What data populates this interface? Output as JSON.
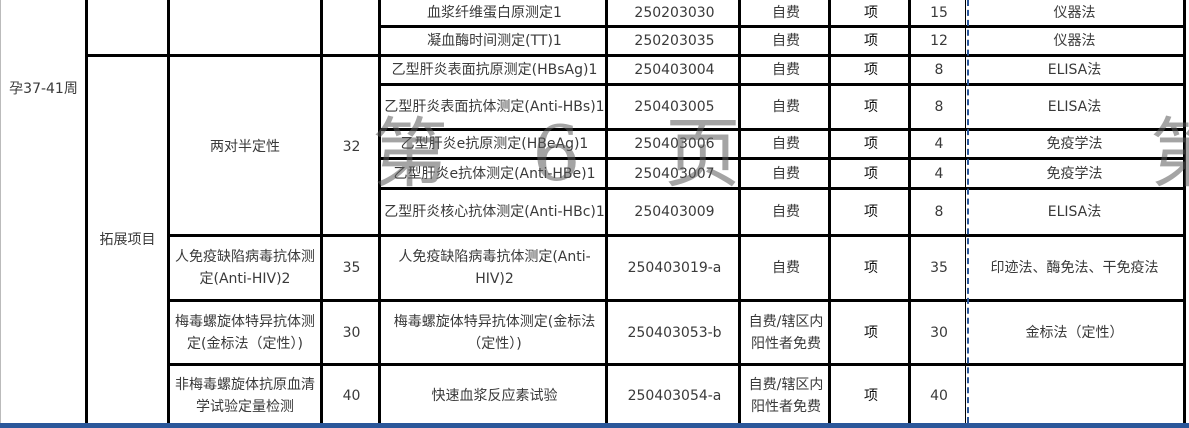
{
  "period": "孕37-41周",
  "category": "拓展项目",
  "group": {
    "name": "两对半定性",
    "price": "32"
  },
  "rows": [
    {
      "item": "血浆纤维蛋白原测定1",
      "code": "250203030",
      "pay": "自费",
      "unit": "项",
      "price": "15",
      "method": "仪器法"
    },
    {
      "item": "凝血酶时间测定(TT)1",
      "code": "250203035",
      "pay": "自费",
      "unit": "项",
      "price": "12",
      "method": "仪器法"
    },
    {
      "item": "乙型肝炎表面抗原测定(HBsAg)1",
      "code": "250403004",
      "pay": "自费",
      "unit": "项",
      "price": "8",
      "method": "ELISA法"
    },
    {
      "item": "乙型肝炎表面抗体测定(Anti-HBs)1",
      "code": "250403005",
      "pay": "自费",
      "unit": "项",
      "price": "8",
      "method": "ELISA法"
    },
    {
      "item": "乙型肝炎e抗原测定(HBeAg)1",
      "code": "250403006",
      "pay": "自费",
      "unit": "项",
      "price": "4",
      "method": "免疫学法"
    },
    {
      "item": "乙型肝炎e抗体测定(Anti-HBe)1",
      "code": "250403007",
      "pay": "自费",
      "unit": "项",
      "price": "4",
      "method": "免疫学法"
    },
    {
      "item": "乙型肝炎核心抗体测定(Anti-HBc)1",
      "code": "250403009",
      "pay": "自费",
      "unit": "项",
      "price": "8",
      "method": "ELISA法"
    },
    {
      "name": "人免疫缺陷病毒抗体测定(Anti-HIV)2",
      "total": "35",
      "item": "人免疫缺陷病毒抗体测定(Anti-HIV)2",
      "code": "250403019-a",
      "pay": "自费",
      "unit": "项",
      "price": "35",
      "method": "印迹法、酶免法、干免疫法"
    },
    {
      "name": "梅毒螺旋体特异抗体测定(金标法（定性）)",
      "total": "30",
      "item": "梅毒螺旋体特异抗体测定(金标法（定性）)",
      "code": "250403053-b",
      "pay": "自费/辖区内阳性者免费",
      "unit": "项",
      "price": "30",
      "method": "金标法（定性）"
    },
    {
      "name": "非梅毒螺旋体抗原血清学试验定量检测",
      "total": "40",
      "item": "快速血浆反应素试验",
      "code": "250403054-a",
      "pay": "自费/辖区内阳性者免费",
      "unit": "项",
      "price": "40",
      "method": ""
    }
  ],
  "watermark": "第 6 页",
  "watermark_partial": "第"
}
